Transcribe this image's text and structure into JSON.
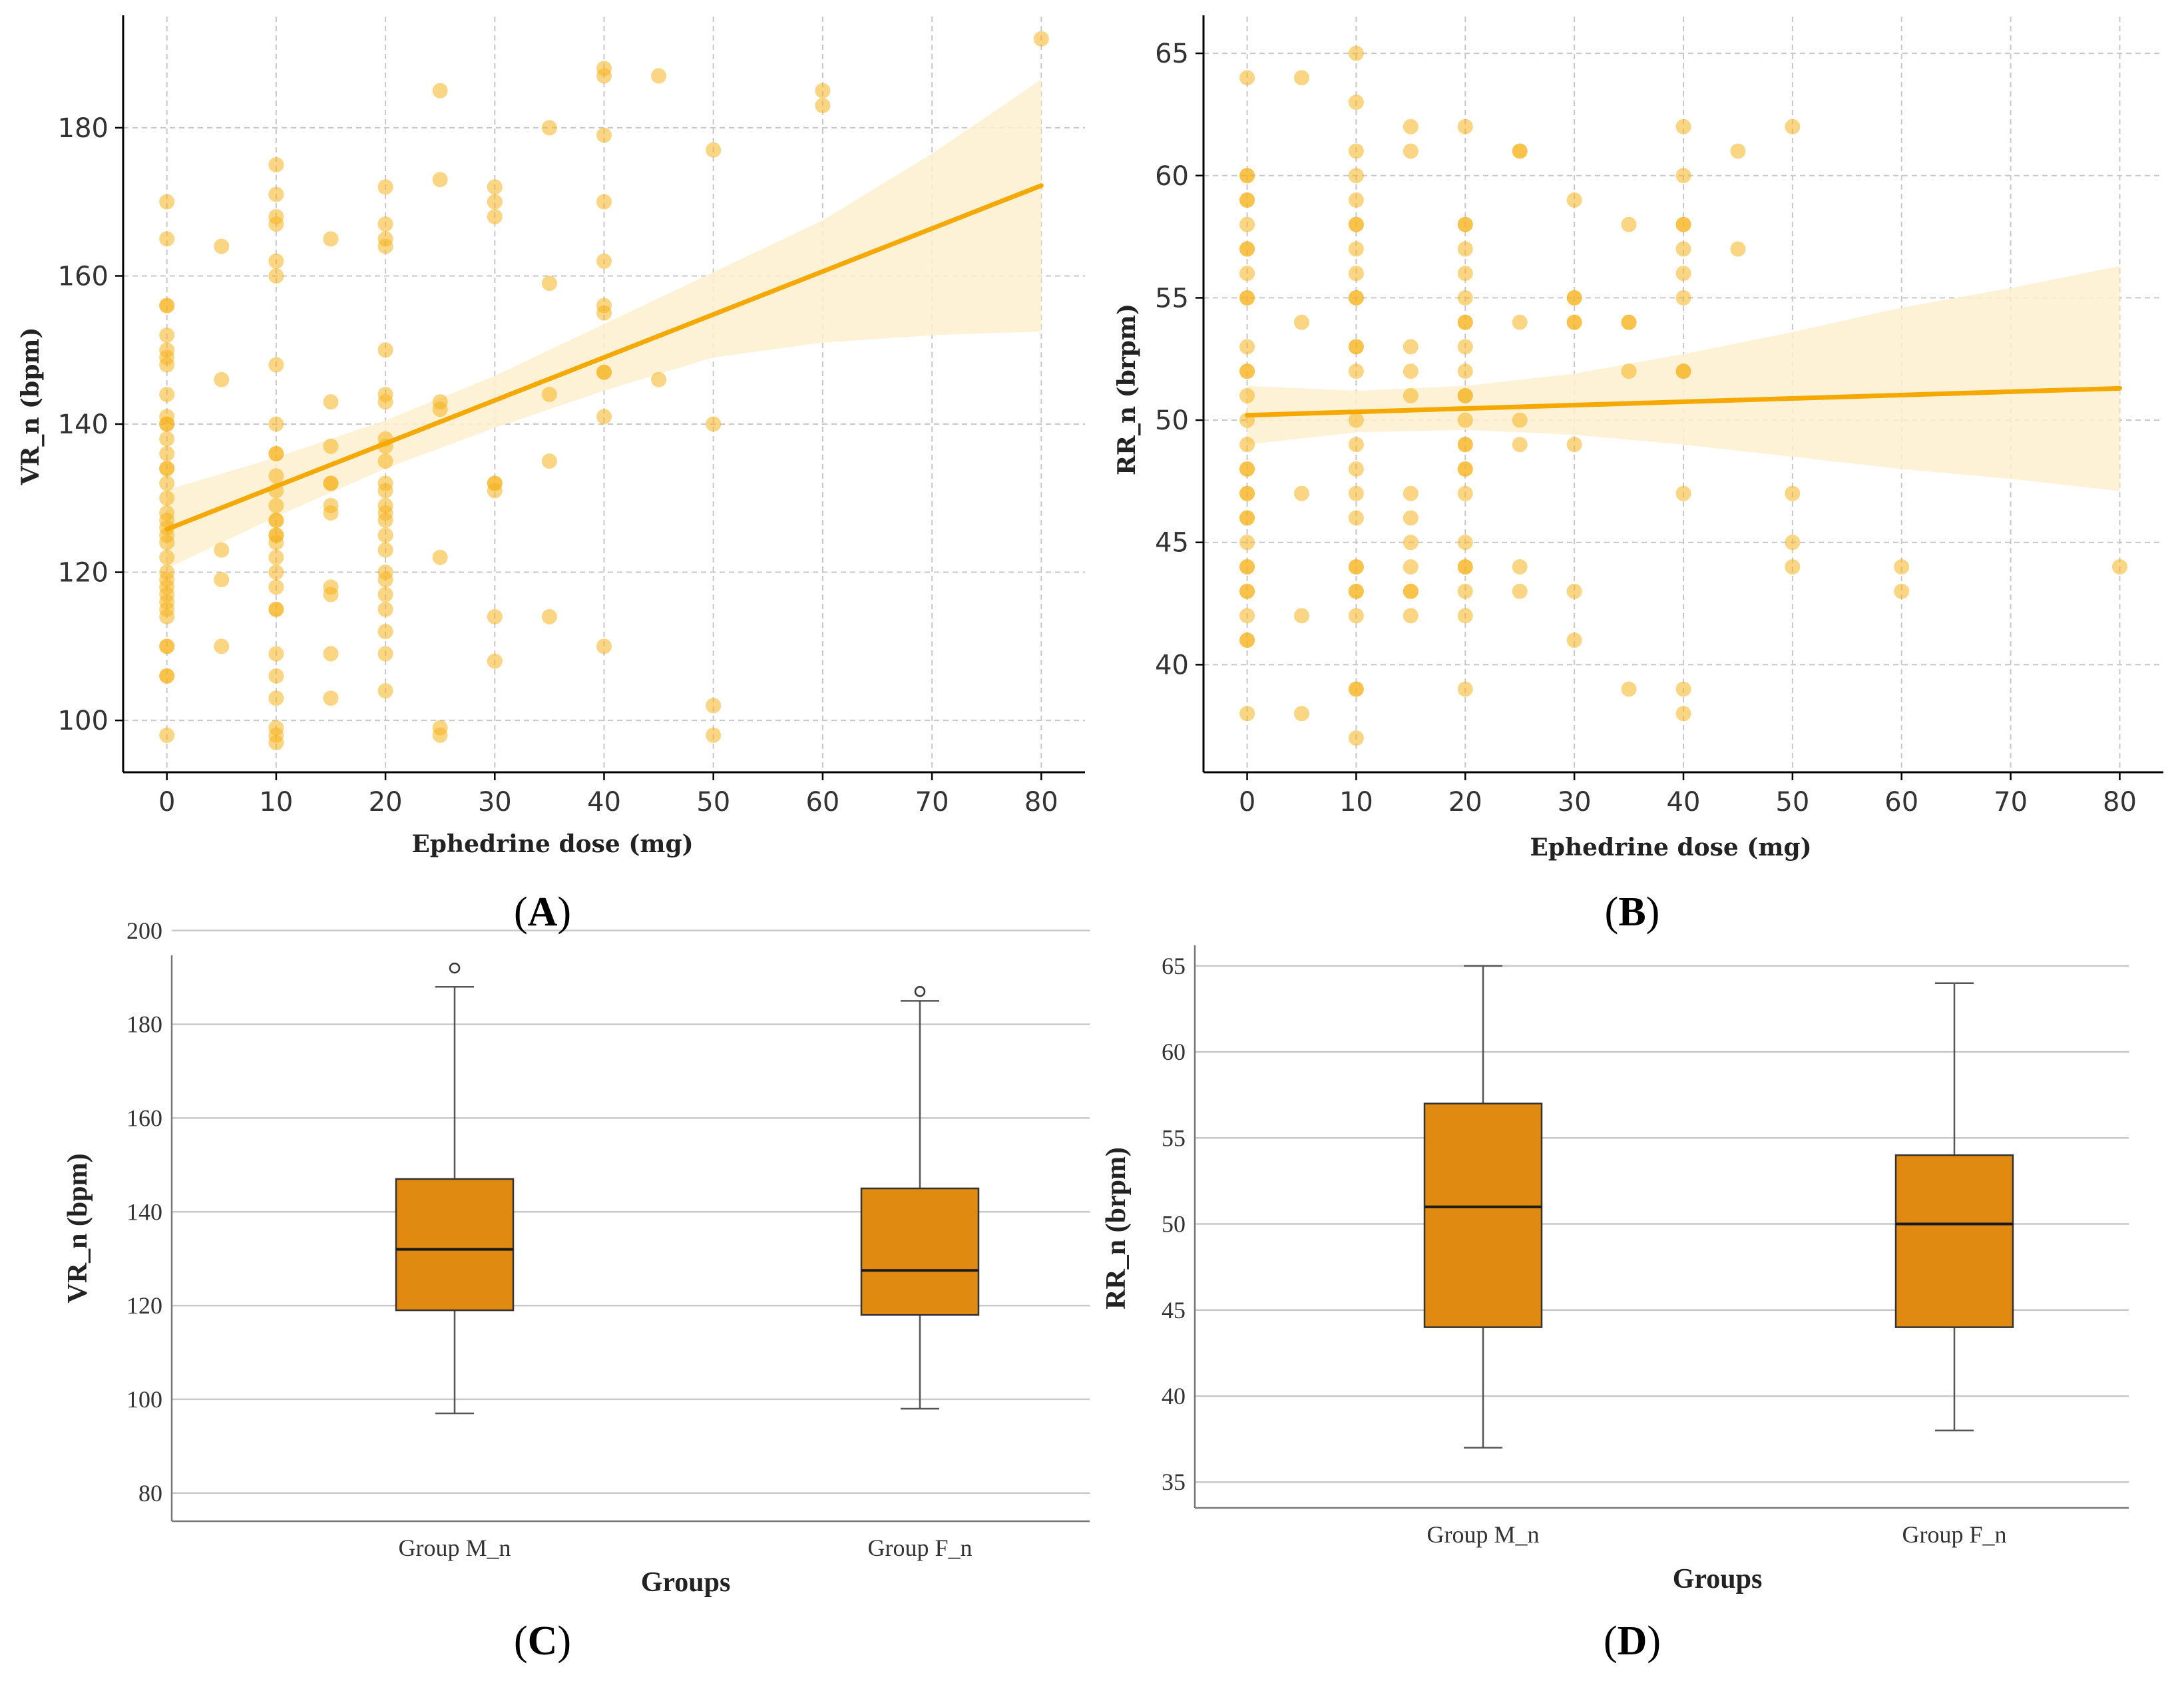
{
  "colors": {
    "scatter": "#F5B21E",
    "line": "#F5A800",
    "band": "#FDEFCF",
    "box_fill": "#E08A12",
    "box_edge": "#333333",
    "grid": "#C8C8C8"
  },
  "chart_data": [
    {
      "id": "A",
      "type": "scatter",
      "panel_label": "(A)",
      "xlabel": "Ephedrine dose (mg)",
      "ylabel": "VR_n (bpm)",
      "xlim": [
        -4,
        84
      ],
      "ylim": [
        93,
        195
      ],
      "xticks": [
        0,
        10,
        20,
        30,
        40,
        50,
        60,
        70,
        80
      ],
      "yticks": [
        100,
        120,
        140,
        160,
        180
      ],
      "grid": true,
      "regression": {
        "x": [
          0,
          80
        ],
        "y": [
          125.8,
          172.2
        ]
      },
      "confidence_band": {
        "x": [
          0,
          10,
          20,
          30,
          40,
          50,
          60,
          70,
          80
        ],
        "upper": [
          131.1,
          135.5,
          140.5,
          146.5,
          153.5,
          160.5,
          167.5,
          176.5,
          186.5
        ],
        "lower": [
          120.5,
          127.5,
          134.0,
          139.5,
          144.5,
          149.0,
          151.0,
          152.0,
          152.5
        ]
      },
      "points": [
        [
          0,
          98
        ],
        [
          0,
          106
        ],
        [
          0,
          106
        ],
        [
          0,
          110
        ],
        [
          0,
          110
        ],
        [
          0,
          114
        ],
        [
          0,
          115
        ],
        [
          0,
          116
        ],
        [
          0,
          117
        ],
        [
          0,
          118
        ],
        [
          0,
          119
        ],
        [
          0,
          120
        ],
        [
          0,
          122
        ],
        [
          0,
          124
        ],
        [
          0,
          125
        ],
        [
          0,
          126
        ],
        [
          0,
          127
        ],
        [
          0,
          128
        ],
        [
          0,
          130
        ],
        [
          0,
          132
        ],
        [
          0,
          134
        ],
        [
          0,
          134
        ],
        [
          0,
          136
        ],
        [
          0,
          138
        ],
        [
          0,
          140
        ],
        [
          0,
          140
        ],
        [
          0,
          141
        ],
        [
          0,
          144
        ],
        [
          0,
          148
        ],
        [
          0,
          149
        ],
        [
          0,
          150
        ],
        [
          0,
          152
        ],
        [
          0,
          156
        ],
        [
          0,
          156
        ],
        [
          0,
          165
        ],
        [
          0,
          170
        ],
        [
          5,
          110
        ],
        [
          5,
          119
        ],
        [
          5,
          123
        ],
        [
          5,
          146
        ],
        [
          5,
          164
        ],
        [
          10,
          97
        ],
        [
          10,
          98
        ],
        [
          10,
          99
        ],
        [
          10,
          103
        ],
        [
          10,
          106
        ],
        [
          10,
          109
        ],
        [
          10,
          115
        ],
        [
          10,
          115
        ],
        [
          10,
          118
        ],
        [
          10,
          120
        ],
        [
          10,
          122
        ],
        [
          10,
          124
        ],
        [
          10,
          125
        ],
        [
          10,
          125
        ],
        [
          10,
          127
        ],
        [
          10,
          127
        ],
        [
          10,
          129
        ],
        [
          10,
          131
        ],
        [
          10,
          133
        ],
        [
          10,
          136
        ],
        [
          10,
          136
        ],
        [
          10,
          140
        ],
        [
          10,
          148
        ],
        [
          10,
          160
        ],
        [
          10,
          162
        ],
        [
          10,
          167
        ],
        [
          10,
          168
        ],
        [
          10,
          171
        ],
        [
          10,
          175
        ],
        [
          15,
          103
        ],
        [
          15,
          109
        ],
        [
          15,
          117
        ],
        [
          15,
          118
        ],
        [
          15,
          128
        ],
        [
          15,
          129
        ],
        [
          15,
          132
        ],
        [
          15,
          132
        ],
        [
          15,
          137
        ],
        [
          15,
          143
        ],
        [
          15,
          165
        ],
        [
          20,
          104
        ],
        [
          20,
          109
        ],
        [
          20,
          112
        ],
        [
          20,
          115
        ],
        [
          20,
          117
        ],
        [
          20,
          119
        ],
        [
          20,
          120
        ],
        [
          20,
          123
        ],
        [
          20,
          125
        ],
        [
          20,
          127
        ],
        [
          20,
          128
        ],
        [
          20,
          129
        ],
        [
          20,
          131
        ],
        [
          20,
          132
        ],
        [
          20,
          135
        ],
        [
          20,
          137
        ],
        [
          20,
          138
        ],
        [
          20,
          143
        ],
        [
          20,
          144
        ],
        [
          20,
          150
        ],
        [
          20,
          164
        ],
        [
          20,
          165
        ],
        [
          20,
          167
        ],
        [
          20,
          172
        ],
        [
          25,
          98
        ],
        [
          25,
          99
        ],
        [
          25,
          122
        ],
        [
          25,
          142
        ],
        [
          25,
          143
        ],
        [
          25,
          173
        ],
        [
          25,
          185
        ],
        [
          30,
          108
        ],
        [
          30,
          114
        ],
        [
          30,
          131
        ],
        [
          30,
          132
        ],
        [
          30,
          132
        ],
        [
          30,
          168
        ],
        [
          30,
          170
        ],
        [
          30,
          172
        ],
        [
          35,
          114
        ],
        [
          35,
          135
        ],
        [
          35,
          144
        ],
        [
          35,
          159
        ],
        [
          35,
          180
        ],
        [
          40,
          110
        ],
        [
          40,
          141
        ],
        [
          40,
          147
        ],
        [
          40,
          147
        ],
        [
          40,
          155
        ],
        [
          40,
          156
        ],
        [
          40,
          162
        ],
        [
          40,
          170
        ],
        [
          40,
          179
        ],
        [
          40,
          187
        ],
        [
          40,
          188
        ],
        [
          45,
          146
        ],
        [
          45,
          187
        ],
        [
          50,
          98
        ],
        [
          50,
          102
        ],
        [
          50,
          140
        ],
        [
          50,
          177
        ],
        [
          60,
          183
        ],
        [
          60,
          185
        ],
        [
          80,
          192
        ]
      ]
    },
    {
      "id": "B",
      "type": "scatter",
      "panel_label": "(B)",
      "xlabel": "Ephedrine dose (mg)",
      "ylabel": "RR_n (brpm)",
      "xlim": [
        -4,
        84
      ],
      "ylim": [
        35.6,
        66.5
      ],
      "xticks": [
        0,
        10,
        20,
        30,
        40,
        50,
        60,
        70,
        80
      ],
      "yticks": [
        40,
        45,
        50,
        55,
        60,
        65
      ],
      "grid": true,
      "regression": {
        "x": [
          0,
          80
        ],
        "y": [
          50.2,
          51.3
        ]
      },
      "confidence_band": {
        "x": [
          0,
          10,
          20,
          30,
          40,
          50,
          60,
          70,
          80
        ],
        "upper": [
          51.4,
          51.2,
          51.4,
          51.9,
          52.7,
          53.6,
          54.6,
          55.4,
          56.3
        ],
        "lower": [
          49.0,
          49.5,
          49.6,
          49.4,
          49.0,
          48.5,
          48.0,
          47.6,
          47.1
        ]
      },
      "points": [
        [
          0,
          38
        ],
        [
          0,
          41
        ],
        [
          0,
          41
        ],
        [
          0,
          42
        ],
        [
          0,
          43
        ],
        [
          0,
          43
        ],
        [
          0,
          44
        ],
        [
          0,
          44
        ],
        [
          0,
          45
        ],
        [
          0,
          46
        ],
        [
          0,
          46
        ],
        [
          0,
          47
        ],
        [
          0,
          47
        ],
        [
          0,
          48
        ],
        [
          0,
          48
        ],
        [
          0,
          49
        ],
        [
          0,
          50
        ],
        [
          0,
          51
        ],
        [
          0,
          52
        ],
        [
          0,
          52
        ],
        [
          0,
          53
        ],
        [
          0,
          55
        ],
        [
          0,
          55
        ],
        [
          0,
          56
        ],
        [
          0,
          57
        ],
        [
          0,
          57
        ],
        [
          0,
          58
        ],
        [
          0,
          59
        ],
        [
          0,
          59
        ],
        [
          0,
          60
        ],
        [
          0,
          60
        ],
        [
          0,
          64
        ],
        [
          5,
          38
        ],
        [
          5,
          42
        ],
        [
          5,
          47
        ],
        [
          5,
          54
        ],
        [
          5,
          64
        ],
        [
          10,
          37
        ],
        [
          10,
          39
        ],
        [
          10,
          39
        ],
        [
          10,
          42
        ],
        [
          10,
          43
        ],
        [
          10,
          43
        ],
        [
          10,
          44
        ],
        [
          10,
          44
        ],
        [
          10,
          46
        ],
        [
          10,
          47
        ],
        [
          10,
          48
        ],
        [
          10,
          49
        ],
        [
          10,
          50
        ],
        [
          10,
          52
        ],
        [
          10,
          53
        ],
        [
          10,
          53
        ],
        [
          10,
          55
        ],
        [
          10,
          55
        ],
        [
          10,
          56
        ],
        [
          10,
          57
        ],
        [
          10,
          58
        ],
        [
          10,
          58
        ],
        [
          10,
          59
        ],
        [
          10,
          60
        ],
        [
          10,
          61
        ],
        [
          10,
          63
        ],
        [
          10,
          65
        ],
        [
          15,
          42
        ],
        [
          15,
          43
        ],
        [
          15,
          43
        ],
        [
          15,
          44
        ],
        [
          15,
          45
        ],
        [
          15,
          46
        ],
        [
          15,
          47
        ],
        [
          15,
          51
        ],
        [
          15,
          52
        ],
        [
          15,
          53
        ],
        [
          15,
          61
        ],
        [
          15,
          62
        ],
        [
          20,
          39
        ],
        [
          20,
          42
        ],
        [
          20,
          43
        ],
        [
          20,
          44
        ],
        [
          20,
          44
        ],
        [
          20,
          45
        ],
        [
          20,
          47
        ],
        [
          20,
          48
        ],
        [
          20,
          48
        ],
        [
          20,
          49
        ],
        [
          20,
          49
        ],
        [
          20,
          50
        ],
        [
          20,
          51
        ],
        [
          20,
          51
        ],
        [
          20,
          52
        ],
        [
          20,
          53
        ],
        [
          20,
          54
        ],
        [
          20,
          54
        ],
        [
          20,
          55
        ],
        [
          20,
          56
        ],
        [
          20,
          57
        ],
        [
          20,
          58
        ],
        [
          20,
          58
        ],
        [
          20,
          62
        ],
        [
          25,
          43
        ],
        [
          25,
          44
        ],
        [
          25,
          49
        ],
        [
          25,
          50
        ],
        [
          25,
          54
        ],
        [
          25,
          61
        ],
        [
          25,
          61
        ],
        [
          30,
          41
        ],
        [
          30,
          43
        ],
        [
          30,
          49
        ],
        [
          30,
          54
        ],
        [
          30,
          54
        ],
        [
          30,
          55
        ],
        [
          30,
          55
        ],
        [
          30,
          59
        ],
        [
          35,
          39
        ],
        [
          35,
          52
        ],
        [
          35,
          54
        ],
        [
          35,
          54
        ],
        [
          35,
          58
        ],
        [
          40,
          38
        ],
        [
          40,
          39
        ],
        [
          40,
          47
        ],
        [
          40,
          52
        ],
        [
          40,
          52
        ],
        [
          40,
          55
        ],
        [
          40,
          56
        ],
        [
          40,
          57
        ],
        [
          40,
          58
        ],
        [
          40,
          58
        ],
        [
          40,
          60
        ],
        [
          40,
          62
        ],
        [
          45,
          57
        ],
        [
          45,
          61
        ],
        [
          50,
          44
        ],
        [
          50,
          45
        ],
        [
          50,
          47
        ],
        [
          50,
          62
        ],
        [
          60,
          43
        ],
        [
          60,
          44
        ],
        [
          80,
          44
        ]
      ]
    },
    {
      "id": "C",
      "type": "box",
      "panel_label": "(C)",
      "xlabel": "Groups",
      "ylabel": "VR_n (bpm)",
      "ylim": [
        74,
        194
      ],
      "yticks": [
        80,
        100,
        120,
        140,
        160,
        180,
        200
      ],
      "categories": [
        "Group M_n",
        "Group F_n"
      ],
      "boxes": [
        {
          "name": "Group M_n",
          "min": 97,
          "q1": 119,
          "median": 132,
          "q3": 147,
          "max": 188,
          "outliers": [
            192
          ]
        },
        {
          "name": "Group F_n",
          "min": 98,
          "q1": 118,
          "median": 127.5,
          "q3": 145,
          "max": 185,
          "outliers": [
            187
          ]
        }
      ]
    },
    {
      "id": "D",
      "type": "box",
      "panel_label": "(D)",
      "xlabel": "Groups",
      "ylabel": "RR_n (brpm)",
      "ylim": [
        33.5,
        66
      ],
      "yticks": [
        35,
        40,
        45,
        50,
        55,
        60,
        65
      ],
      "categories": [
        "Group M_n",
        "Group F_n"
      ],
      "boxes": [
        {
          "name": "Group M_n",
          "min": 37,
          "q1": 44,
          "median": 51,
          "q3": 57,
          "max": 65,
          "outliers": []
        },
        {
          "name": "Group F_n",
          "min": 38,
          "q1": 44,
          "median": 50,
          "q3": 54,
          "max": 64,
          "outliers": []
        }
      ]
    }
  ]
}
